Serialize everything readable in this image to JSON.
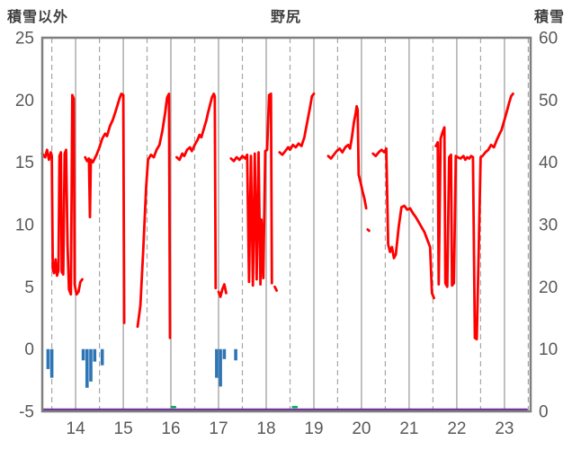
{
  "header": {
    "left_axis_title": "積雪以外",
    "chart_title": "野尻",
    "right_axis_title": "積雪"
  },
  "colors": {
    "grid": "#A6A6A6",
    "frame": "#7F7F7F",
    "tick_text": "#595959",
    "title_text": "#404040",
    "red_series": "#FF0000",
    "blue_bars": "#2E75B6",
    "purple_series": "#7030A0",
    "green_series": "#00B050"
  },
  "chart_data": {
    "type": "line",
    "title": "野尻",
    "x_axis": {
      "min": 13.3,
      "max": 23.55,
      "labels": [
        14,
        15,
        16,
        17,
        18,
        19,
        20,
        21,
        22,
        23
      ],
      "solid_gridlines": [
        14,
        15,
        16,
        17,
        18,
        19,
        20,
        21,
        22,
        23
      ],
      "dashed_gridlines": [
        13.5,
        14.5,
        15.5,
        16.5,
        17.5,
        18.5,
        19.5,
        20.5,
        21.5,
        22.5,
        23.5
      ]
    },
    "left_axis": {
      "title": "積雪以外",
      "min": -5,
      "max": 25,
      "tick_step": 5
    },
    "right_axis": {
      "title": "積雪",
      "min": 0,
      "max": 60,
      "tick_step": 10
    },
    "grid": {
      "vertical": true,
      "horizontal": false
    },
    "legend": "none",
    "series": [
      {
        "name": "snow-depth",
        "type": "line",
        "axis": "right",
        "color": "#7030A0",
        "width": 2.2,
        "points": [
          [
            13.3,
            0.3
          ],
          [
            23.47,
            0.3
          ]
        ]
      },
      {
        "name": "green-marker",
        "type": "line",
        "axis": "right",
        "color": "#00B050",
        "width": 2.5,
        "points": [
          [
            16.02,
            0.7
          ],
          [
            16.09,
            0.7
          ],
          null,
          [
            18.56,
            0.7
          ],
          [
            18.64,
            0.7
          ]
        ]
      },
      {
        "name": "negative-bars",
        "type": "bar",
        "axis": "left",
        "color": "#2E75B6",
        "baseline": 0,
        "points": [
          [
            13.42,
            -1.6
          ],
          [
            13.5,
            -2.3
          ],
          [
            14.16,
            -0.9
          ],
          [
            14.24,
            -3.1
          ],
          [
            14.32,
            -2.6
          ],
          [
            14.4,
            -1.0
          ],
          [
            14.56,
            -1.3
          ],
          [
            16.96,
            -2.3
          ],
          [
            17.04,
            -3.0
          ],
          [
            17.12,
            -0.8
          ],
          [
            17.36,
            -0.9
          ]
        ]
      },
      {
        "name": "other-than-snow",
        "type": "line",
        "axis": "left",
        "color": "#FF0000",
        "width": 2.8,
        "points": [
          [
            13.3,
            15.7
          ],
          [
            13.36,
            15.4
          ],
          [
            13.4,
            16.0
          ],
          [
            13.44,
            15.2
          ],
          [
            13.48,
            15.8
          ],
          [
            13.5,
            15.5
          ],
          [
            13.52,
            6.4
          ],
          [
            13.55,
            6.1
          ],
          [
            13.58,
            7.2
          ],
          [
            13.61,
            5.9
          ],
          [
            13.64,
            6.3
          ],
          [
            13.66,
            15.5
          ],
          [
            13.69,
            15.8
          ],
          [
            13.71,
            6.2
          ],
          [
            13.74,
            6.0
          ],
          [
            13.77,
            15.7
          ],
          [
            13.8,
            16.0
          ],
          [
            13.83,
            8.4
          ],
          [
            13.86,
            4.8
          ],
          [
            13.9,
            4.4
          ],
          [
            13.93,
            20.4
          ],
          [
            13.96,
            20.1
          ],
          [
            13.98,
            5.2
          ],
          [
            14.02,
            4.4
          ],
          [
            14.06,
            4.6
          ],
          [
            14.1,
            5.4
          ],
          [
            14.14,
            5.6
          ],
          null,
          [
            14.2,
            15.4
          ],
          [
            14.24,
            15.1
          ],
          [
            14.28,
            15.3
          ],
          [
            14.3,
            10.6
          ],
          [
            14.32,
            15.2
          ],
          [
            14.36,
            15.0
          ],
          [
            14.4,
            15.3
          ],
          [
            14.44,
            15.6
          ],
          [
            14.5,
            16.2
          ],
          [
            14.56,
            16.9
          ],
          [
            14.62,
            17.3
          ],
          [
            14.66,
            17.1
          ],
          [
            14.72,
            17.9
          ],
          [
            14.78,
            18.4
          ],
          [
            14.84,
            19.1
          ],
          [
            14.88,
            19.6
          ],
          [
            14.92,
            20.1
          ],
          [
            14.96,
            20.5
          ],
          [
            15.0,
            20.4
          ],
          [
            15.02,
            2.1
          ],
          null,
          [
            15.3,
            1.8
          ],
          [
            15.36,
            3.5
          ],
          [
            15.42,
            8.0
          ],
          [
            15.48,
            13.0
          ],
          [
            15.52,
            15.2
          ],
          [
            15.58,
            15.6
          ],
          [
            15.64,
            15.4
          ],
          [
            15.7,
            16.0
          ],
          [
            15.76,
            16.4
          ],
          [
            15.82,
            17.5
          ],
          [
            15.88,
            19.0
          ],
          [
            15.92,
            20.2
          ],
          [
            15.96,
            20.5
          ],
          [
            15.98,
            0.9
          ],
          null,
          [
            16.12,
            15.4
          ],
          [
            16.18,
            15.2
          ],
          [
            16.24,
            15.7
          ],
          [
            16.28,
            15.5
          ],
          [
            16.34,
            16.0
          ],
          [
            16.4,
            16.2
          ],
          [
            16.44,
            15.9
          ],
          [
            16.5,
            16.4
          ],
          [
            16.56,
            16.8
          ],
          [
            16.6,
            17.2
          ],
          [
            16.64,
            17.0
          ],
          [
            16.7,
            17.8
          ],
          [
            16.74,
            18.3
          ],
          [
            16.78,
            19.0
          ],
          [
            16.82,
            19.6
          ],
          [
            16.86,
            20.2
          ],
          [
            16.9,
            20.5
          ],
          [
            16.92,
            20.3
          ],
          [
            16.94,
            4.9
          ],
          null,
          [
            17.0,
            4.6
          ],
          [
            17.04,
            4.2
          ],
          [
            17.08,
            4.8
          ],
          [
            17.12,
            5.2
          ],
          [
            17.16,
            4.5
          ],
          null,
          [
            17.26,
            15.3
          ],
          [
            17.32,
            15.1
          ],
          [
            17.38,
            15.4
          ],
          [
            17.44,
            15.2
          ],
          [
            17.5,
            15.5
          ],
          [
            17.56,
            15.3
          ],
          [
            17.6,
            15.6
          ],
          [
            17.64,
            5.4
          ],
          [
            17.68,
            15.5
          ],
          [
            17.72,
            5.1
          ],
          [
            17.76,
            15.7
          ],
          [
            17.8,
            5.6
          ],
          [
            17.84,
            15.8
          ],
          [
            17.88,
            5.2
          ],
          [
            17.9,
            10.4
          ],
          [
            17.94,
            5.7
          ],
          [
            17.98,
            15.9
          ],
          [
            18.02,
            16.0
          ],
          [
            18.06,
            20.4
          ],
          [
            18.1,
            20.5
          ],
          [
            18.12,
            5.3
          ],
          null,
          [
            18.18,
            5.0
          ],
          [
            18.22,
            4.7
          ],
          null,
          [
            18.28,
            15.8
          ],
          [
            18.34,
            15.6
          ],
          [
            18.4,
            15.9
          ],
          [
            18.46,
            16.2
          ],
          [
            18.5,
            16.0
          ],
          [
            18.56,
            16.4
          ],
          [
            18.62,
            16.2
          ],
          [
            18.68,
            16.5
          ],
          [
            18.74,
            16.3
          ],
          [
            18.8,
            17.0
          ],
          [
            18.84,
            17.8
          ],
          [
            18.88,
            18.6
          ],
          [
            18.92,
            19.4
          ],
          [
            18.96,
            20.3
          ],
          [
            19.0,
            20.5
          ],
          null,
          [
            19.3,
            15.5
          ],
          [
            19.36,
            15.3
          ],
          [
            19.42,
            15.6
          ],
          [
            19.48,
            15.9
          ],
          [
            19.54,
            16.1
          ],
          [
            19.6,
            15.8
          ],
          [
            19.66,
            16.2
          ],
          [
            19.72,
            16.4
          ],
          [
            19.76,
            16.1
          ],
          [
            19.8,
            17.0
          ],
          [
            19.84,
            18.2
          ],
          [
            19.88,
            19.0
          ],
          [
            19.9,
            19.5
          ],
          [
            19.92,
            19.2
          ],
          [
            19.94,
            14.0
          ],
          [
            19.98,
            13.4
          ],
          [
            20.02,
            12.7
          ],
          [
            20.06,
            12.1
          ],
          [
            20.1,
            11.3
          ],
          null,
          [
            20.13,
            9.6
          ],
          [
            20.16,
            9.5
          ],
          null,
          [
            20.24,
            15.7
          ],
          [
            20.3,
            15.5
          ],
          [
            20.36,
            15.8
          ],
          [
            20.42,
            16.0
          ],
          [
            20.48,
            15.8
          ],
          [
            20.52,
            16.1
          ],
          [
            20.56,
            8.4
          ],
          [
            20.6,
            7.8
          ],
          [
            20.64,
            8.2
          ],
          [
            20.68,
            7.3
          ],
          [
            20.72,
            7.6
          ],
          [
            20.78,
            9.8
          ],
          [
            20.84,
            11.4
          ],
          [
            20.9,
            11.5
          ],
          [
            20.96,
            11.2
          ],
          [
            21.02,
            11.3
          ],
          [
            21.08,
            10.9
          ],
          [
            21.14,
            10.6
          ],
          [
            21.2,
            10.2
          ],
          [
            21.26,
            9.8
          ],
          [
            21.32,
            9.4
          ],
          [
            21.38,
            8.8
          ],
          [
            21.44,
            8.2
          ],
          [
            21.48,
            4.5
          ],
          [
            21.52,
            4.1
          ],
          null,
          [
            21.56,
            16.3
          ],
          [
            21.6,
            16.6
          ],
          [
            21.62,
            5.2
          ],
          [
            21.66,
            16.9
          ],
          [
            21.7,
            17.4
          ],
          [
            21.74,
            17.8
          ],
          [
            21.76,
            5.3
          ],
          [
            21.8,
            5.0
          ],
          [
            21.84,
            15.4
          ],
          [
            21.88,
            15.6
          ],
          [
            21.9,
            5.1
          ],
          [
            21.94,
            5.3
          ],
          [
            21.98,
            15.5
          ],
          [
            22.02,
            15.4
          ],
          [
            22.08,
            15.3
          ],
          [
            22.14,
            15.5
          ],
          [
            22.18,
            15.2
          ],
          [
            22.22,
            15.4
          ],
          [
            22.26,
            15.3
          ],
          [
            22.3,
            15.5
          ],
          [
            22.34,
            15.4
          ],
          [
            22.38,
            0.9
          ],
          [
            22.42,
            0.8
          ],
          [
            22.46,
            8.0
          ],
          [
            22.5,
            15.4
          ],
          [
            22.54,
            15.5
          ],
          [
            22.6,
            15.8
          ],
          [
            22.66,
            16.0
          ],
          [
            22.72,
            16.4
          ],
          [
            22.78,
            16.2
          ],
          [
            22.84,
            16.8
          ],
          [
            22.9,
            17.3
          ],
          [
            22.94,
            17.6
          ],
          [
            23.0,
            18.4
          ],
          [
            23.06,
            19.2
          ],
          [
            23.1,
            19.8
          ],
          [
            23.14,
            20.3
          ],
          [
            23.18,
            20.5
          ]
        ]
      }
    ]
  }
}
